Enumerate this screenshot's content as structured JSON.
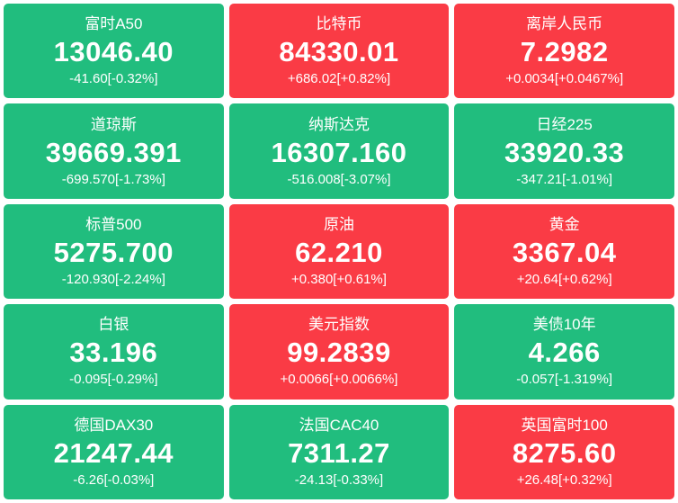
{
  "dashboard": {
    "colors": {
      "up_bg": "#fa3b45",
      "down_bg": "#21bd7e",
      "text": "#ffffff"
    },
    "tiles": [
      {
        "name": "富时A50",
        "value": "13046.40",
        "change": "-41.60[-0.32%]",
        "direction": "down"
      },
      {
        "name": "比特币",
        "value": "84330.01",
        "change": "+686.02[+0.82%]",
        "direction": "up"
      },
      {
        "name": "离岸人民币",
        "value": "7.2982",
        "change": "+0.0034[+0.0467%]",
        "direction": "up"
      },
      {
        "name": "道琼斯",
        "value": "39669.391",
        "change": "-699.570[-1.73%]",
        "direction": "down"
      },
      {
        "name": "纳斯达克",
        "value": "16307.160",
        "change": "-516.008[-3.07%]",
        "direction": "down"
      },
      {
        "name": "日经225",
        "value": "33920.33",
        "change": "-347.21[-1.01%]",
        "direction": "down"
      },
      {
        "name": "标普500",
        "value": "5275.700",
        "change": "-120.930[-2.24%]",
        "direction": "down"
      },
      {
        "name": "原油",
        "value": "62.210",
        "change": "+0.380[+0.61%]",
        "direction": "up"
      },
      {
        "name": "黄金",
        "value": "3367.04",
        "change": "+20.64[+0.62%]",
        "direction": "up"
      },
      {
        "name": "白银",
        "value": "33.196",
        "change": "-0.095[-0.29%]",
        "direction": "down"
      },
      {
        "name": "美元指数",
        "value": "99.2839",
        "change": "+0.0066[+0.0066%]",
        "direction": "up"
      },
      {
        "name": "美债10年",
        "value": "4.266",
        "change": "-0.057[-1.319%]",
        "direction": "down"
      },
      {
        "name": "德国DAX30",
        "value": "21247.44",
        "change": "-6.26[-0.03%]",
        "direction": "down"
      },
      {
        "name": "法国CAC40",
        "value": "7311.27",
        "change": "-24.13[-0.33%]",
        "direction": "down"
      },
      {
        "name": "英国富时100",
        "value": "8275.60",
        "change": "+26.48[+0.32%]",
        "direction": "up"
      }
    ]
  }
}
